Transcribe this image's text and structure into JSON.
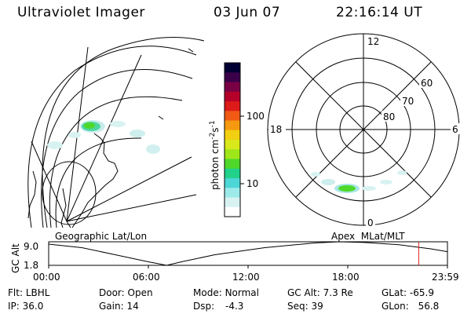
{
  "header": {
    "title": "Ultraviolet Imager",
    "date": "03 Jun 07",
    "time": "22:16:14 UT"
  },
  "colorbar": {
    "unit_label": "photon cm",
    "unit_exp1": "-2",
    "unit_mid": "s",
    "unit_exp2": "-1",
    "tick_100": "100",
    "tick_10": "10",
    "colors": [
      "#000033",
      "#3a004a",
      "#7a0046",
      "#b5002a",
      "#dc1a1a",
      "#f05a14",
      "#f59a10",
      "#f2cf10",
      "#d8e81a",
      "#9ee61a",
      "#4fd82a",
      "#22d28a",
      "#4cd6d6",
      "#9ceaea",
      "#d8f2f2",
      "#ffffff"
    ]
  },
  "geo_panel": {
    "label": "Geographic Lat/Lon"
  },
  "polar_panel": {
    "label": "Apex  MLat/MLT",
    "mlt_12": "12",
    "mlt_18": "18",
    "mlt_6": "6",
    "mlt_0": "0",
    "lat_60": "60",
    "lat_70": "70",
    "lat_80": "80"
  },
  "altitude_plot": {
    "ylabel": "GC Alt",
    "y_top": "9.0",
    "y_bottom": "1.8",
    "x_ticks": [
      "00:00",
      "06:00",
      "12:00",
      "18:00",
      "23:59"
    ],
    "current_marker_hours": 22.27
  },
  "status": {
    "filter_label": "Flt:",
    "filter_value": "LBHL",
    "ip_label": "IP:",
    "ip_value": "36.0",
    "door_label": "Door:",
    "door_value": "Open",
    "gain_label": "Gain:",
    "gain_value": "14",
    "mode_label": "Mode:",
    "mode_value": "Normal",
    "dsp_label": "Dsp:",
    "dsp_value": "-4.3",
    "gcalt_label": "GC Alt:",
    "gcalt_value": "7.3 Re",
    "seq_label": "Seq:",
    "seq_value": "39",
    "glat_label": "GLat:",
    "glat_value": "-65.9",
    "glon_label": "GLon:",
    "glon_value": "56.8"
  }
}
